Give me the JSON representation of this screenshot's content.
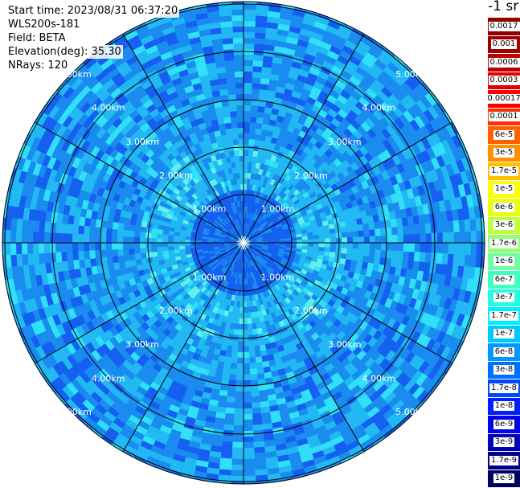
{
  "header": {
    "start_time": "Start time: 2023/08/31 06:37:20",
    "instrument": "WLS200s-181",
    "field": "Field: BETA",
    "elevation": "Elevation(deg): 35.30",
    "nrays": "NRays: 120"
  },
  "colorbar": {
    "units": "-1 sr",
    "entries": [
      {
        "label": "0.0017",
        "color": "#8b0000"
      },
      {
        "label": "0.001",
        "color": "#a00000"
      },
      {
        "label": "0.0006",
        "color": "#c00000"
      },
      {
        "label": "0.0003",
        "color": "#e00000"
      },
      {
        "label": "0.00017",
        "color": "#ff0000"
      },
      {
        "label": "0.0001",
        "color": "#ff3000"
      },
      {
        "label": "6e-5",
        "color": "#ff6000"
      },
      {
        "label": "3e-5",
        "color": "#ff9000"
      },
      {
        "label": "1.7e-5",
        "color": "#ffc000"
      },
      {
        "label": "1e-5",
        "color": "#ffff00"
      },
      {
        "label": "6e-6",
        "color": "#e8ff10"
      },
      {
        "label": "3e-6",
        "color": "#c0ff40"
      },
      {
        "label": "1.7e-6",
        "color": "#90ff70"
      },
      {
        "label": "1e-6",
        "color": "#70ffa0"
      },
      {
        "label": "6e-7",
        "color": "#40ffc0"
      },
      {
        "label": "3e-7",
        "color": "#20ffe0"
      },
      {
        "label": "1.7e-7",
        "color": "#00f0ff"
      },
      {
        "label": "1e-7",
        "color": "#00c8ff"
      },
      {
        "label": "6e-8",
        "color": "#0098ff"
      },
      {
        "label": "3e-8",
        "color": "#0070ff"
      },
      {
        "label": "1.7e-8",
        "color": "#0048ff"
      },
      {
        "label": "1e-8",
        "color": "#0020ff"
      },
      {
        "label": "6e-9",
        "color": "#0000e8"
      },
      {
        "label": "3e-9",
        "color": "#0000b8"
      },
      {
        "label": "1.7e-9",
        "color": "#000090"
      },
      {
        "label": "1e-9",
        "color": "#000060"
      }
    ]
  },
  "range_labels": [
    "1.00km",
    "2.00km",
    "3.00km",
    "4.00km",
    "5.00km"
  ],
  "palette": {
    "dark": "#1560f0",
    "mid": "#1a8cf0",
    "light": "#22b8f4",
    "cyan": "#30e0f8",
    "pale": "#60f0e8"
  }
}
